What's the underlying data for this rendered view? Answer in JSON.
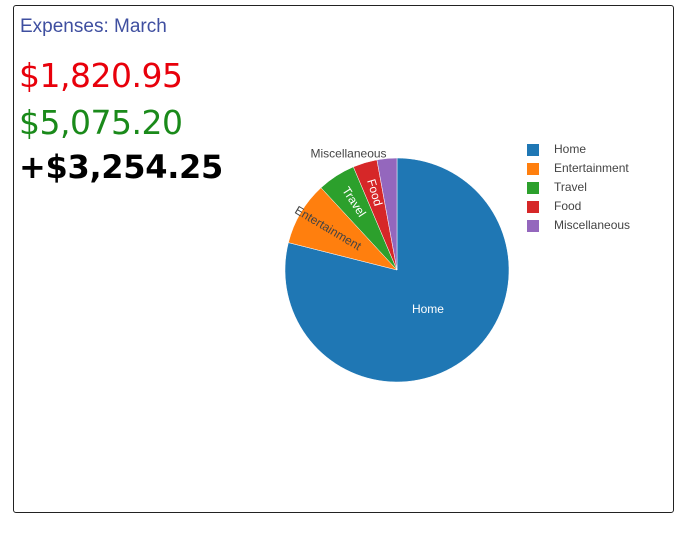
{
  "card": {
    "title": "Expenses: March",
    "title_color": "#3f4fa0",
    "expenses_total": "$1,820.95",
    "expenses_color": "#e8000b",
    "income_total": "$5,075.20",
    "income_color": "#1a8a1a",
    "net_total": "+$3,254.25",
    "net_color": "#000000"
  },
  "chart_data": {
    "type": "pie",
    "title": "",
    "categories": [
      "Home",
      "Entertainment",
      "Travel",
      "Food",
      "Miscellaneous"
    ],
    "values": [
      1437.27,
      167.53,
      100.15,
      63.74,
      52.26
    ],
    "colors": [
      "#1f77b4",
      "#ff7f0e",
      "#2ca02c",
      "#d62728",
      "#9467bd"
    ],
    "legend_position": "right",
    "label_orientation": "radial"
  }
}
